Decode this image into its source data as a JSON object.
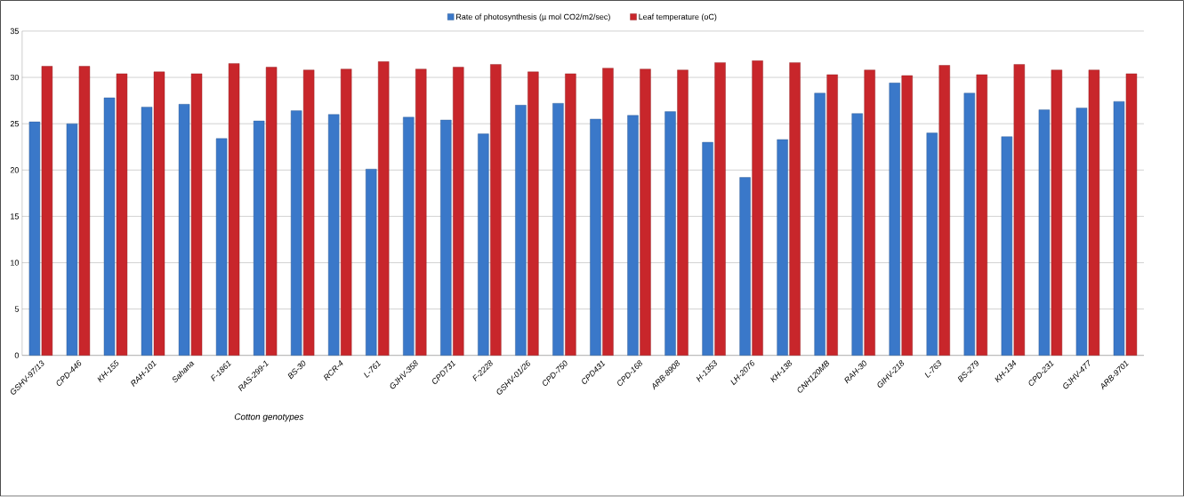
{
  "chart_data": {
    "type": "bar",
    "xlabel": "Cotton genotypes",
    "categories": [
      "GSHV-97/13",
      "CPD-446",
      "KH-155",
      "RAH-101",
      "Sahana",
      "F-1861",
      "RAS-299-1",
      "BS-30",
      "RCR-4",
      "L-761",
      "GJHV-358",
      "CPD731",
      "F-2228",
      "GSHV-01/26",
      "CPD-750",
      "CPD431",
      "CPD-168",
      "ARB-8908",
      "H-1353",
      "LH-2076",
      "KH-138",
      "CNH120MB",
      "RAH-30",
      "GIHV-218",
      "L-763",
      "BS-279",
      "KH-134",
      "CPD-231",
      "GJHV-477",
      "ARB-9701"
    ],
    "series": [
      {
        "name": "Rate of photosynthesis (µ mol CO2/m2/sec)",
        "color": "#3a78c9",
        "values": [
          25.2,
          25.0,
          27.8,
          26.8,
          27.1,
          23.4,
          25.3,
          26.4,
          26.0,
          20.1,
          25.7,
          25.4,
          23.9,
          27.0,
          27.2,
          25.5,
          25.9,
          26.3,
          23.0,
          19.2,
          23.3,
          28.3,
          26.1,
          29.4,
          24.0,
          28.3,
          23.6,
          26.5,
          26.7,
          27.4
        ]
      },
      {
        "name": "Leaf temperature (oC)",
        "color": "#c8262b",
        "values": [
          31.2,
          31.2,
          30.4,
          30.6,
          30.4,
          31.5,
          31.1,
          30.8,
          30.9,
          31.7,
          30.9,
          31.1,
          31.4,
          30.6,
          30.4,
          31.0,
          30.9,
          30.8,
          31.6,
          31.8,
          31.6,
          30.3,
          30.8,
          30.2,
          31.3,
          30.3,
          31.4,
          30.8,
          30.8,
          30.4
        ]
      }
    ],
    "ylim": [
      0,
      35
    ],
    "yticks": [
      0,
      5,
      10,
      15,
      20,
      25,
      30,
      35
    ],
    "grid": "y",
    "legend": "top"
  }
}
